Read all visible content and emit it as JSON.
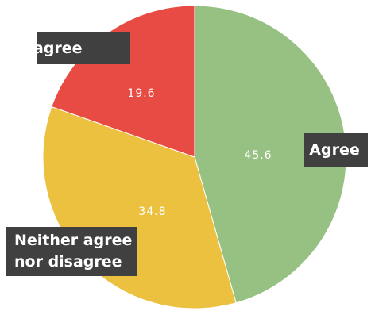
{
  "chart_data": {
    "type": "pie",
    "slices": [
      {
        "label": "Agree",
        "label_lines": [
          "Agree"
        ],
        "value": 45.6,
        "value_label": "45.6",
        "color": "#96c183"
      },
      {
        "label": "Neither agree nor disagree",
        "label_lines": [
          "Neither agree",
          "nor disagree"
        ],
        "value": 34.8,
        "value_label": "34.8",
        "color": "#ecc13f"
      },
      {
        "label": "Disagree",
        "label_lines": [
          "Disagree"
        ],
        "value": 19.6,
        "value_label": "19.6",
        "color": "#e84b43"
      }
    ],
    "start_angle": "12 o'clock",
    "direction": "clockwise",
    "legend": "none",
    "callout_background": "#404040"
  }
}
